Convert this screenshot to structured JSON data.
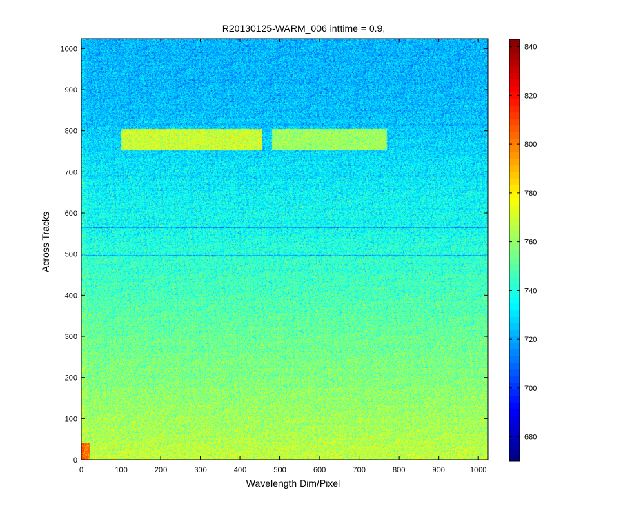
{
  "chart_data": {
    "type": "heatmap",
    "title": "R20130125-WARM_006 inttime = 0.9,",
    "xlabel": "Wavelength Dim/Pixel",
    "ylabel": "Across Tracks",
    "xlim": [
      0,
      1024
    ],
    "ylim": [
      0,
      1024
    ],
    "x_ticks": [
      0,
      100,
      200,
      300,
      400,
      500,
      600,
      700,
      800,
      900,
      1000
    ],
    "y_ticks": [
      0,
      100,
      200,
      300,
      400,
      500,
      600,
      700,
      800,
      900,
      1000
    ],
    "colormap": "jet",
    "colorbar": {
      "range": [
        670,
        843
      ],
      "ticks": [
        680,
        700,
        720,
        740,
        760,
        780,
        800,
        820,
        840
      ]
    },
    "background_trend": [
      {
        "y": 0,
        "value": 768
      },
      {
        "y": 100,
        "value": 762
      },
      {
        "y": 250,
        "value": 755
      },
      {
        "y": 400,
        "value": 748
      },
      {
        "y": 550,
        "value": 738
      },
      {
        "y": 700,
        "value": 732
      },
      {
        "y": 850,
        "value": 724
      },
      {
        "y": 1024,
        "value": 722
      }
    ],
    "features": [
      {
        "name": "bright band segment 1",
        "x_range": [
          100,
          455
        ],
        "y_range": [
          752,
          805
        ],
        "value": 770
      },
      {
        "name": "bright band segment 2",
        "x_range": [
          480,
          770
        ],
        "y_range": [
          752,
          805
        ],
        "value": 762
      },
      {
        "name": "hot corner",
        "x_range": [
          0,
          20
        ],
        "y_range": [
          0,
          40
        ],
        "value": 800
      }
    ],
    "dark_rows": [
      497,
      565,
      690,
      815
    ],
    "grid": false
  }
}
